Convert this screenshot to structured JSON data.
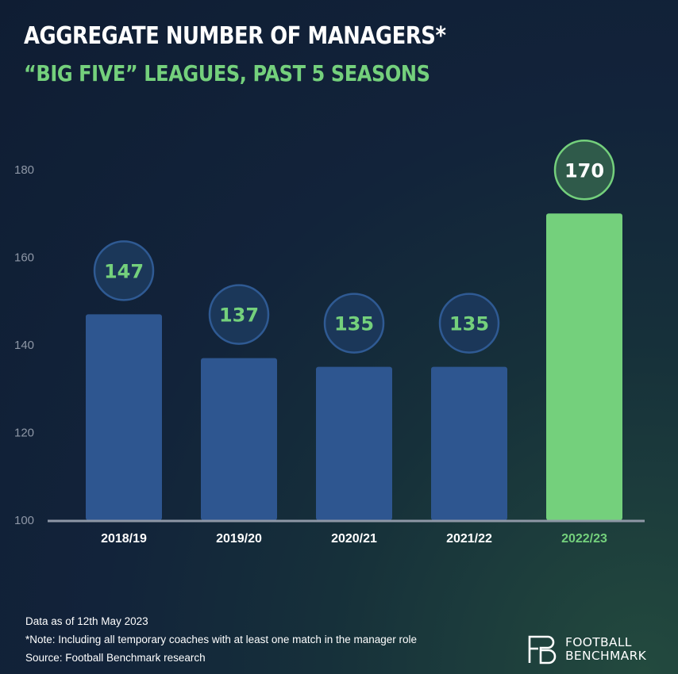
{
  "title": "AGGREGATE NUMBER OF MANAGERS*",
  "subtitle": "“BIG FIVE” LEAGUES, PAST 5 SEASONS",
  "chart_data": {
    "type": "bar",
    "categories": [
      "2018/19",
      "2019/20",
      "2020/21",
      "2021/22",
      "2022/23"
    ],
    "values": [
      147,
      137,
      135,
      135,
      170
    ],
    "data_labels": [
      "147",
      "137",
      "135",
      "135",
      "170"
    ],
    "ylim": [
      100,
      180
    ],
    "yticks": [
      100,
      120,
      140,
      160,
      180
    ],
    "ytick_labels": [
      "100",
      "120",
      "140",
      "160",
      "180"
    ],
    "grid": false,
    "colors": {
      "bar": "#2e5690",
      "highlight_bar": "#74d07c",
      "label_text": "#74d07c",
      "highlight_label_text": "#ffffff",
      "bubble_fill": "#1b3759",
      "bubble_stroke": "#2f5a93",
      "highlight_bubble_fill": "#2f5a4a",
      "highlight_bubble_stroke": "#74d07c"
    },
    "highlight_index": 4
  },
  "footnotes": [
    "Data as of 12th May 2023",
    "*Note: Including all temporary coaches with at least one match in the manager role",
    "Source: Football Benchmark research"
  ],
  "logo": {
    "line1": "FOOTBALL",
    "line2": "BENCHMARK",
    "icon": "fb-monogram-icon"
  }
}
